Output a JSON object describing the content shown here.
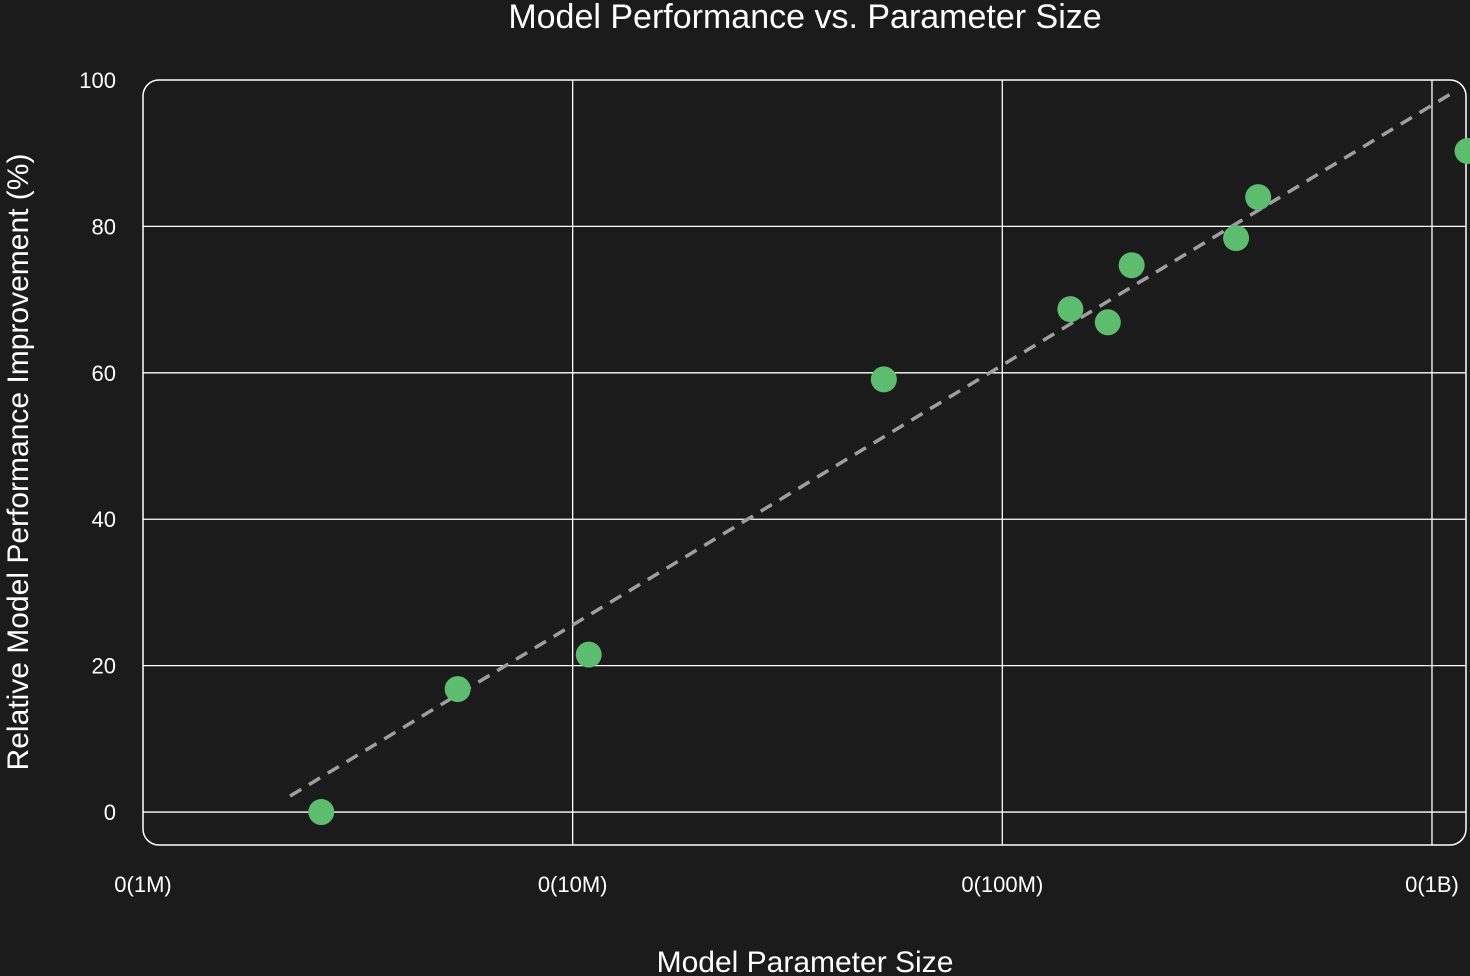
{
  "chart_data": {
    "type": "scatter",
    "title": "Model Performance vs. Parameter Size",
    "xlabel": "Model Parameter Size",
    "ylabel": "Relative Model Performance Improvement (%)",
    "x_scale": "log",
    "x_ticks": [
      {
        "value": 1000000,
        "label": "0(1M)"
      },
      {
        "value": 10000000,
        "label": "0(10M)"
      },
      {
        "value": 100000000,
        "label": "0(100M)"
      },
      {
        "value": 1000000000,
        "label": "0(1B)"
      }
    ],
    "y_ticks": [
      0,
      20,
      40,
      60,
      80,
      100
    ],
    "ylim": [
      -4.5,
      100
    ],
    "xlim": [
      1000000,
      1200000000
    ],
    "grid": true,
    "colors": {
      "background": "#1b1b1b",
      "point": "#5cbd6e",
      "trend": "#9e9e9e",
      "grid": "#ffffff"
    },
    "points": [
      {
        "x": 2600000,
        "y": 0
      },
      {
        "x": 5400000,
        "y": 16.8
      },
      {
        "x": 10900000,
        "y": 21.5
      },
      {
        "x": 53000000,
        "y": 59.1
      },
      {
        "x": 144000000,
        "y": 68.7
      },
      {
        "x": 176000000,
        "y": 66.9
      },
      {
        "x": 200000000,
        "y": 74.7
      },
      {
        "x": 350000000,
        "y": 78.4
      },
      {
        "x": 394000000,
        "y": 84.0
      },
      {
        "x": 1210000000,
        "y": 90.3
      }
    ],
    "trend_line": {
      "style": "dashed",
      "start": {
        "x": 2200000,
        "y": 2.2
      },
      "end": {
        "x": 1120000000,
        "y": 98.3
      }
    }
  }
}
